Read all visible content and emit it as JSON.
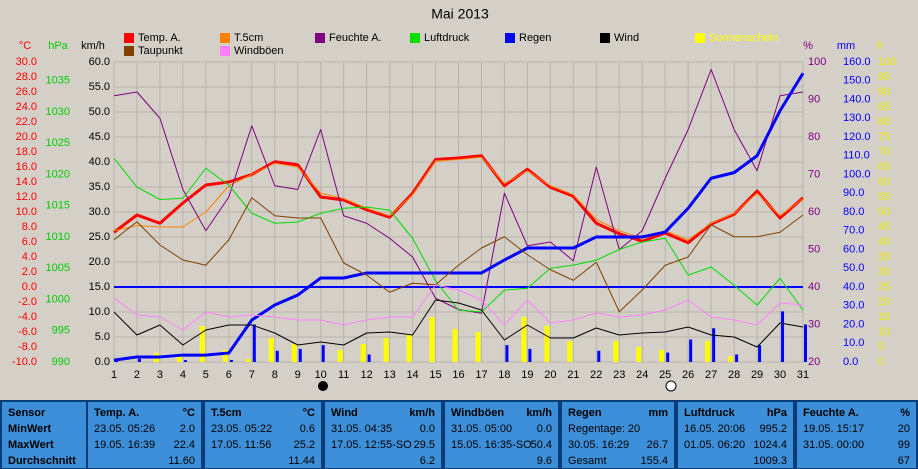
{
  "chart_data": {
    "type": "line",
    "title": "Mai 2013",
    "x": [
      1,
      2,
      3,
      4,
      5,
      6,
      7,
      8,
      9,
      10,
      11,
      12,
      13,
      14,
      15,
      16,
      17,
      18,
      19,
      20,
      21,
      22,
      23,
      24,
      25,
      26,
      27,
      28,
      29,
      30,
      31
    ],
    "xlim": [
      1,
      31
    ],
    "xticks": [
      1,
      2,
      3,
      4,
      5,
      6,
      7,
      8,
      9,
      10,
      11,
      12,
      13,
      14,
      15,
      16,
      17,
      18,
      19,
      20,
      21,
      22,
      23,
      24,
      25,
      26,
      27,
      28,
      29,
      30,
      31
    ],
    "grid": true,
    "axes": {
      "temp": {
        "unit": "°C",
        "color": "#ff0000",
        "side": "left",
        "lim": [
          -10,
          30
        ],
        "ticks": [
          {
            "value": 30,
            "label": "30.0"
          },
          {
            "value": 28,
            "label": "28.0"
          },
          {
            "value": 26,
            "label": "26.0"
          },
          {
            "value": 24,
            "label": "24.0"
          },
          {
            "value": 22,
            "label": "22.0"
          },
          {
            "value": 20,
            "label": "20.0"
          },
          {
            "value": 18,
            "label": "18.0"
          },
          {
            "value": 16,
            "label": "16.0"
          },
          {
            "value": 14,
            "label": "14.0"
          },
          {
            "value": 12,
            "label": "12.0"
          },
          {
            "value": 10,
            "label": "10.0"
          },
          {
            "value": 8,
            "label": "8.0"
          },
          {
            "value": 6,
            "label": "6.0"
          },
          {
            "value": 4,
            "label": "4.0"
          },
          {
            "value": 2,
            "label": "2.0"
          },
          {
            "value": 0,
            "label": "0.0"
          },
          {
            "value": -2,
            "label": "-2.0"
          },
          {
            "value": -4,
            "label": "-4.0"
          },
          {
            "value": -6,
            "label": "-6.0"
          },
          {
            "value": -8,
            "label": "-8.0"
          },
          {
            "value": -10,
            "label": "-10.0"
          }
        ]
      },
      "press": {
        "unit": "hPa",
        "color": "#00cc00",
        "side": "left",
        "lim": [
          990,
          1038
        ],
        "ticks": [
          1035,
          1030,
          1025,
          1020,
          1015,
          1010,
          1005,
          1000,
          995,
          990
        ]
      },
      "wind": {
        "unit": "km/h",
        "color": "#000000",
        "side": "left",
        "lim": [
          0,
          60
        ],
        "ticks": [
          {
            "value": 60,
            "label": "60.0"
          },
          {
            "value": 55,
            "label": "55.0"
          },
          {
            "value": 50,
            "label": "50.0"
          },
          {
            "value": 45,
            "label": "45.0"
          },
          {
            "value": 40,
            "label": "40.0"
          },
          {
            "value": 35,
            "label": "35.0"
          },
          {
            "value": 30,
            "label": "30.0"
          },
          {
            "value": 25,
            "label": "25.0"
          },
          {
            "value": 20,
            "label": "20.0"
          },
          {
            "value": 15,
            "label": "15.0"
          },
          {
            "value": 10,
            "label": "10.0"
          },
          {
            "value": 5,
            "label": "5.0"
          },
          {
            "value": 0,
            "label": "0.0"
          }
        ]
      },
      "hum": {
        "unit": "%",
        "color": "#800080",
        "side": "right",
        "lim": [
          20,
          100
        ],
        "ticks": [
          100,
          90,
          80,
          70,
          60,
          50,
          40,
          30,
          20
        ]
      },
      "rain": {
        "unit": "mm",
        "color": "#0000ff",
        "side": "right",
        "lim": [
          0,
          160
        ],
        "ticks": [
          {
            "value": 160,
            "label": "160.0"
          },
          {
            "value": 150,
            "label": "150.0"
          },
          {
            "value": 140,
            "label": "140.0"
          },
          {
            "value": 130,
            "label": "130.0"
          },
          {
            "value": 120,
            "label": "120.0"
          },
          {
            "value": 110,
            "label": "110.0"
          },
          {
            "value": 100,
            "label": "100.0"
          },
          {
            "value": 90,
            "label": "90.0"
          },
          {
            "value": 80,
            "label": "80.0"
          },
          {
            "value": 70,
            "label": "70.0"
          },
          {
            "value": 60,
            "label": "60.0"
          },
          {
            "value": 50,
            "label": "50.0"
          },
          {
            "value": 40,
            "label": "40.0"
          },
          {
            "value": 30,
            "label": "30.0"
          },
          {
            "value": 20,
            "label": "20.0"
          },
          {
            "value": 10,
            "label": "10.0"
          },
          {
            "value": 0,
            "label": "0.0"
          }
        ]
      },
      "sun": {
        "unit": "h",
        "color": "#e8e800",
        "side": "right",
        "lim": [
          0,
          100
        ],
        "ticks": [
          100,
          95,
          90,
          85,
          80,
          75,
          70,
          65,
          60,
          55,
          50,
          45,
          40,
          35,
          30,
          25,
          20,
          15,
          10,
          5,
          0
        ]
      }
    },
    "series": [
      {
        "name": "Temp. A.",
        "color": "#ff0000",
        "axis": "temp",
        "values": [
          7.3,
          9.6,
          8.5,
          11.2,
          13.6,
          14,
          15,
          16.7,
          16.3,
          12,
          11.6,
          10.3,
          9.3,
          12.5,
          17,
          17.2,
          17.5,
          13.5,
          15.7,
          13.3,
          12.1,
          8.5,
          7.1,
          6.1,
          7.2,
          5.9,
          8.4,
          9.7,
          12.8,
          9.2,
          11.9
        ]
      },
      {
        "name": "T.5cm",
        "color": "#ff8000",
        "axis": "temp",
        "values": [
          7.5,
          8.2,
          8.0,
          8.0,
          10.0,
          13.5,
          15.0,
          16.5,
          16.0,
          12.5,
          11.8,
          10.5,
          9.5,
          12.3,
          16.8,
          17.0,
          17.3,
          13.8,
          15.5,
          13.5,
          12.3,
          9.0,
          7.5,
          6.5,
          7.5,
          6.3,
          8.5,
          9.8,
          12.5,
          9.5,
          11.8
        ]
      },
      {
        "name": "Feuchte A.",
        "color": "#800080",
        "axis": "hum",
        "values": [
          91,
          92,
          85,
          66,
          55,
          64,
          83,
          67,
          66,
          82,
          59,
          57,
          53,
          48,
          37,
          34,
          33,
          65,
          51,
          52,
          47,
          72,
          50,
          55,
          69,
          82,
          98,
          82,
          71,
          91,
          92
        ]
      },
      {
        "name": "Luftdruck",
        "color": "#00dd00",
        "axis": "press",
        "values": [
          1022.6,
          1018,
          1016,
          1016.2,
          1021,
          1018.3,
          1013.8,
          1012.2,
          1012.4,
          1013.8,
          1014.6,
          1014.8,
          1014.3,
          1009.8,
          1003,
          998.3,
          998,
          1001.5,
          1001.8,
          1005,
          1005.5,
          1006.3,
          1008,
          1009.2,
          1009.8,
          1003.9,
          1005.2,
          1002.3,
          999.1,
          1003.4,
          998.3
        ]
      },
      {
        "name": "Regen",
        "color": "#0000ff",
        "axis": "rain",
        "values": [
          1,
          2.7,
          2.7,
          3.7,
          3.7,
          4.8,
          22.4,
          30.4,
          35.7,
          44.8,
          44.8,
          47.5,
          47.5,
          47.5,
          47.5,
          47.5,
          47.5,
          54.4,
          60.8,
          60.8,
          60.8,
          66.7,
          66.7,
          66.7,
          69.3,
          82,
          98,
          101,
          110,
          134,
          154
        ],
        "daily": [
          1,
          1.7,
          0,
          1,
          0,
          1.1,
          20,
          6,
          7,
          9,
          0,
          4,
          0,
          0,
          0,
          0,
          0,
          9,
          7,
          0,
          0,
          6,
          0,
          0,
          5,
          12,
          18,
          4,
          9,
          27,
          20
        ]
      },
      {
        "name": "Wind",
        "color": "#000000",
        "axis": "wind",
        "values": [
          10,
          5.4,
          7.4,
          3.4,
          6.4,
          7.4,
          7.4,
          5.8,
          3.4,
          4,
          3.4,
          5.8,
          6,
          5.4,
          12.4,
          11.8,
          10.4,
          4.4,
          7.4,
          4.8,
          4.8,
          6.8,
          5.4,
          5.8,
          6,
          7,
          5.4,
          5,
          3,
          7.8,
          7
        ]
      },
      {
        "name": "Sonnenschein",
        "color": "#ffff00",
        "axis": "sun",
        "kind": "bar",
        "values": [
          0,
          0,
          3,
          2,
          12,
          4,
          1,
          8,
          6,
          0,
          4,
          6,
          8,
          9,
          15,
          11,
          10,
          0,
          15,
          12,
          7,
          0,
          7,
          5,
          4,
          0,
          7,
          2,
          0,
          0,
          0
        ]
      },
      {
        "name": "Taupunkt",
        "color": "#804000",
        "axis": "temp",
        "values": [
          6.3,
          8.7,
          5.6,
          3.6,
          2.9,
          6.3,
          11.9,
          9.5,
          9.2,
          9.2,
          3.2,
          1.6,
          -0.7,
          0.5,
          0.3,
          2.9,
          5.2,
          6.7,
          4.3,
          2.3,
          0.9,
          3.3,
          -3.3,
          -0.4,
          2.9,
          4,
          8.3,
          6.7,
          6.7,
          7.3,
          9.6
        ]
      },
      {
        "name": "Windböen",
        "color": "#ff80ff",
        "axis": "wind",
        "values": [
          12.8,
          9.4,
          9,
          6.4,
          10,
          9,
          9.4,
          9,
          8.4,
          8.4,
          7.4,
          8.4,
          9,
          9,
          15.4,
          14.4,
          12.4,
          7.4,
          12.4,
          7.8,
          8.4,
          9.8,
          9,
          9.4,
          10.4,
          12.4,
          9,
          8.4,
          7.4,
          11.8,
          11.4
        ]
      }
    ]
  },
  "table": {
    "header": "Sensor",
    "row_labels": [
      "MinWert",
      "MaxWert",
      "Durchschnitt"
    ],
    "columns": [
      {
        "name": "Temp. A.",
        "unit": "°C",
        "min": {
          "time": "23.05. 05:26",
          "value": "2.0"
        },
        "max": {
          "time": "19.05. 16:39",
          "value": "22.4"
        },
        "avg": {
          "value": "11.60"
        }
      },
      {
        "name": "T.5cm",
        "unit": "°C",
        "min": {
          "time": "23.05. 05:22",
          "value": "0.6"
        },
        "max": {
          "time": "17.05. 11:56",
          "value": "25.2"
        },
        "avg": {
          "value": "11.44"
        }
      },
      {
        "name": "Wind",
        "unit": "km/h",
        "min": {
          "time": "31.05. 04:35",
          "value": "0.0"
        },
        "max": {
          "time": "17.05. 12:55-SO",
          "value": "29.5"
        },
        "avg": {
          "value": "6.2"
        }
      },
      {
        "name": "Windböen",
        "unit": "km/h",
        "min": {
          "time": "31.05. 05:00",
          "value": "0.0"
        },
        "max": {
          "time": "15.05. 16:35-SO",
          "value": "50.4"
        },
        "avg": {
          "value": "9.6"
        }
      },
      {
        "name": "Regen",
        "unit": "mm",
        "min": {
          "time": "Regentage: 20"
        },
        "max": {
          "time": "30.05. 16:29",
          "value": "26.7"
        },
        "avg": {
          "time": "Gesamt",
          "value": "155.4"
        }
      },
      {
        "name": "Luftdruck",
        "unit": "hPa",
        "min": {
          "time": "16.05. 20:06",
          "value": "995.2"
        },
        "max": {
          "time": "01.05. 06:20",
          "value": "1024.4"
        },
        "avg": {
          "value": "1009.3"
        }
      },
      {
        "name": "Feuchte A.",
        "unit": "%",
        "min": {
          "time": "19.05. 15:17",
          "value": "20"
        },
        "max": {
          "time": "31.05. 00:00",
          "value": "99"
        },
        "avg": {
          "value": "67"
        }
      }
    ]
  }
}
